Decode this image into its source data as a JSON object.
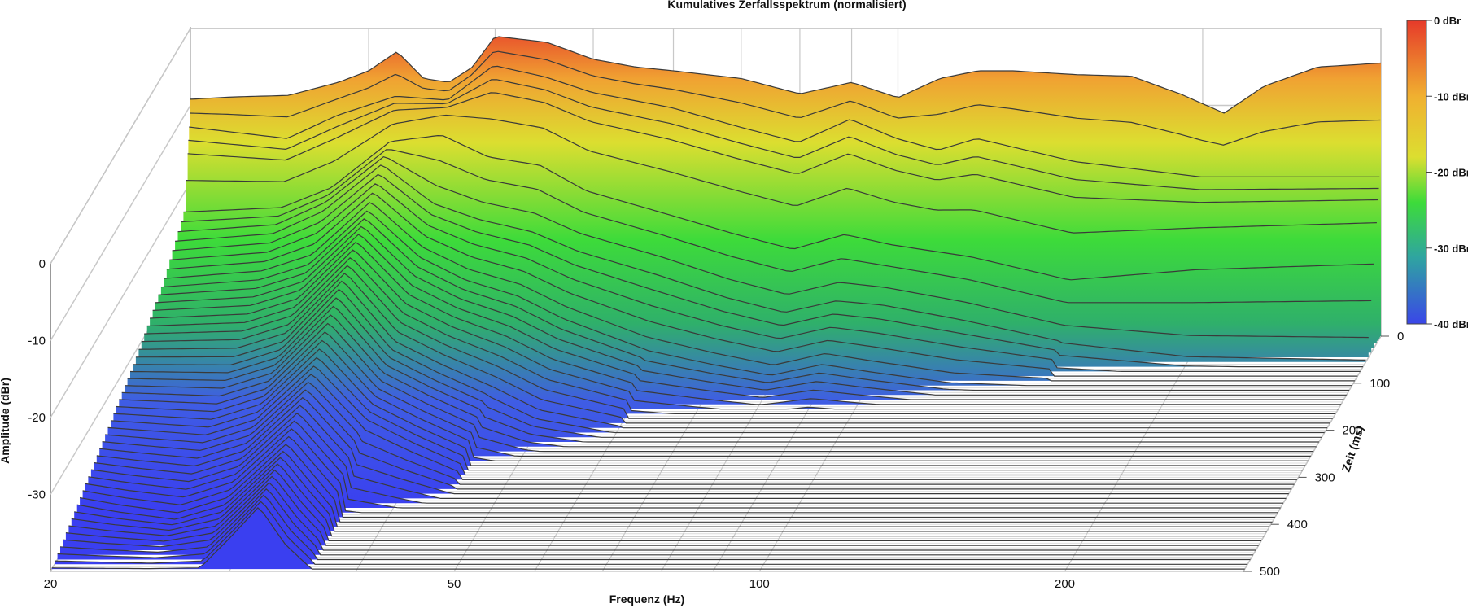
{
  "chart_data": {
    "type": "waterfall-3d",
    "title": "Kumulatives Zerfallsspektrum (normalisiert)",
    "xlabel": "Frequenz (Hz)",
    "ylabel": "Amplitude (dBr)",
    "zlabel": "Zeit (ms)",
    "x_scale": "log",
    "xlim": [
      20,
      300
    ],
    "ylim": [
      -40,
      0
    ],
    "zlim": [
      0,
      500
    ],
    "x_ticks": [
      "20",
      "50",
      "100",
      "200"
    ],
    "y_ticks": [
      "0",
      "-10",
      "-20",
      "-30"
    ],
    "z_ticks": [
      "0",
      "100",
      "200",
      "300",
      "400",
      "500"
    ],
    "colorbar": {
      "labels": [
        "0 dBr",
        "-10 dBr",
        "-20 dBr",
        "-30 dBr",
        "-40 dBr"
      ],
      "colors": [
        "#e23a2c",
        "#f0b030",
        "#dfe030",
        "#3ddb3a",
        "#3a46e8"
      ]
    },
    "series": [
      {
        "time_ms": 0,
        "freq_hz": [
          20,
          22,
          25,
          28,
          30,
          32,
          34,
          36,
          38,
          40,
          45,
          50,
          55,
          60,
          70,
          80,
          90,
          100,
          110,
          120,
          130,
          150,
          170,
          190,
          210,
          230,
          260,
          300
        ],
        "amplitude_db": [
          -9.2,
          -8.9,
          -8.7,
          -7.0,
          -5.5,
          -3.0,
          -6.5,
          -7.0,
          -5.0,
          -1.0,
          -1.8,
          -4.0,
          -5.0,
          -5.5,
          -6.5,
          -8.5,
          -7.0,
          -9.0,
          -6.5,
          -5.5,
          -5.5,
          -6.0,
          -6.2,
          -8.5,
          -11.0,
          -7.5,
          -5.0,
          -4.5
        ]
      },
      {
        "time_ms": 5,
        "freq_hz": [
          20,
          25,
          28,
          32,
          36,
          40,
          45,
          50,
          60,
          70,
          80,
          90,
          100,
          110,
          120,
          150,
          200,
          300
        ],
        "amplitude_db": [
          -12.5,
          -14.0,
          -11.0,
          -8.5,
          -9.0,
          -4.5,
          -6.0,
          -8.0,
          -10.0,
          -12.5,
          -14.5,
          -11.5,
          -14.0,
          -15.5,
          -14.0,
          -17.0,
          -19.0,
          -19.0
        ]
      },
      {
        "time_ms": 20,
        "freq_hz": [
          20,
          25,
          28,
          32,
          36,
          40,
          45,
          50,
          60,
          70,
          80,
          90,
          100,
          120,
          150,
          200,
          300
        ],
        "amplitude_db": [
          -22.0,
          -21.5,
          -19.0,
          -13.0,
          -11.0,
          -14.0,
          -15.0,
          -18.5,
          -21.5,
          -24.0,
          -26.0,
          -24.0,
          -25.5,
          -27.0,
          -30.0,
          -28.0,
          -27.0
        ]
      },
      {
        "time_ms": 50,
        "freq_hz": [
          20,
          25,
          28,
          32,
          36,
          40,
          45,
          50,
          60,
          70,
          80,
          90,
          100,
          120,
          150,
          200,
          300
        ],
        "amplitude_db": [
          -24.0,
          -23.0,
          -20.0,
          -14.0,
          -19.0,
          -21.0,
          -22.5,
          -25.0,
          -28.0,
          -31.0,
          -33.0,
          -31.5,
          -32.0,
          -34.0,
          -37.0,
          -39.0,
          -39.5
        ]
      },
      {
        "time_ms": 100,
        "freq_hz": [
          20,
          25,
          28,
          32,
          36,
          40,
          45,
          50,
          60,
          70,
          80,
          90,
          100,
          120,
          150
        ],
        "amplitude_db": [
          -27.0,
          -26.0,
          -24.0,
          -17.0,
          -23.0,
          -26.0,
          -28.0,
          -31.0,
          -35.0,
          -37.0,
          -38.5,
          -37.0,
          -38.0,
          -39.5,
          -40.0
        ]
      },
      {
        "time_ms": 200,
        "freq_hz": [
          20,
          25,
          28,
          32,
          36,
          40,
          45,
          50,
          60
        ],
        "amplitude_db": [
          -31.0,
          -31.0,
          -29.0,
          -21.0,
          -29.0,
          -32.0,
          -35.0,
          -38.0,
          -40.0
        ]
      },
      {
        "time_ms": 300,
        "freq_hz": [
          20,
          25,
          28,
          32,
          36,
          40,
          45
        ],
        "amplitude_db": [
          -34.0,
          -35.0,
          -33.0,
          -26.0,
          -33.0,
          -36.0,
          -39.0
        ]
      },
      {
        "time_ms": 400,
        "freq_hz": [
          20,
          22,
          25,
          28,
          32,
          36
        ],
        "amplitude_db": [
          -37.0,
          -38.0,
          -39.0,
          -37.0,
          -30.0,
          -38.0
        ]
      },
      {
        "time_ms": 500,
        "freq_hz": [
          20,
          22,
          25,
          28,
          30,
          32,
          34,
          36
        ],
        "amplitude_db": [
          -40.0,
          -40.0,
          -40.0,
          -40.0,
          -36.0,
          -32.0,
          -37.0,
          -40.0
        ]
      }
    ]
  }
}
